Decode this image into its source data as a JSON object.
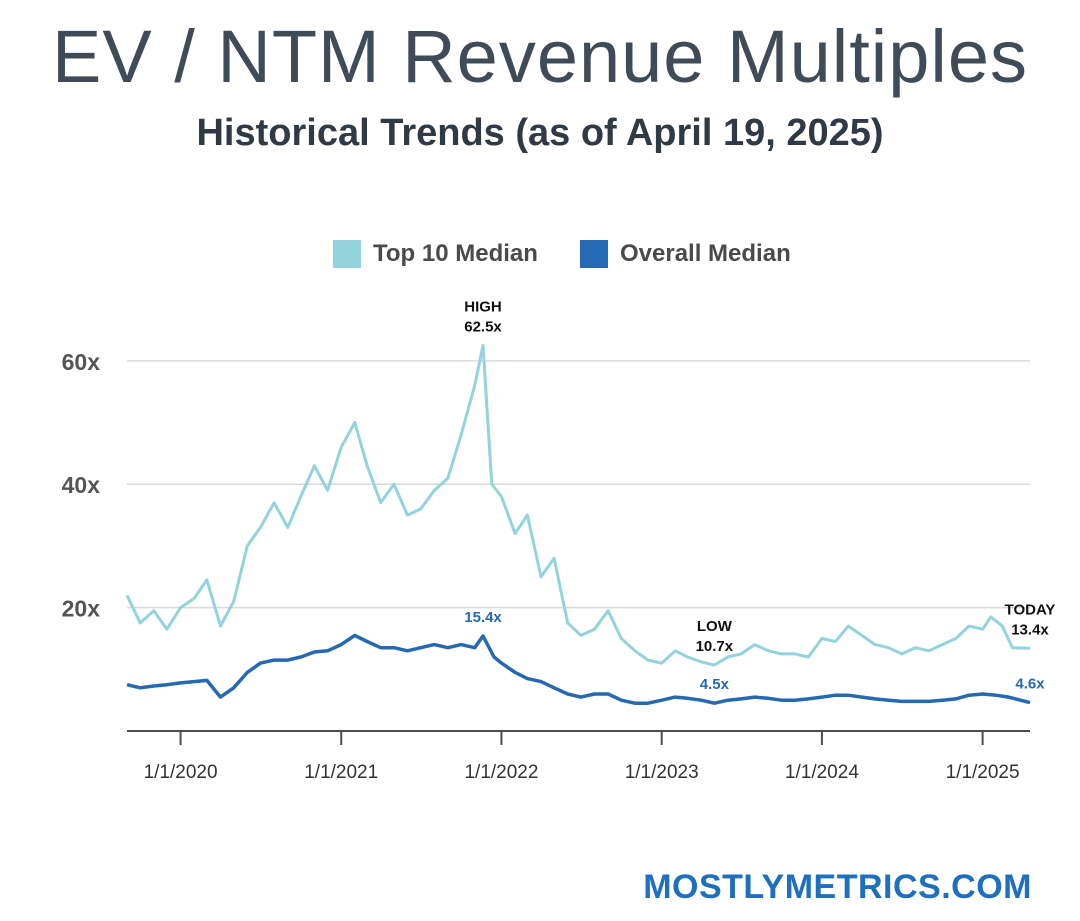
{
  "header": {
    "title": "EV / NTM Revenue Multiples",
    "subtitle": "Historical Trends (as of  April 19, 2025)"
  },
  "legend": [
    {
      "label": "Top 10 Median",
      "color": "#92d3de"
    },
    {
      "label": "Overall Median",
      "color": "#2569b3"
    }
  ],
  "colors": {
    "top10": "#92d3de",
    "overall": "#2569b3",
    "grid": "#d9d9d9",
    "axis": "#4d4d4d"
  },
  "brand": "MOSTLYMETRICS.COM",
  "chart_data": {
    "type": "line",
    "title": "EV / NTM Revenue Multiples",
    "subtitle": "Historical Trends (as of  April 19, 2025)",
    "xlabel": "",
    "ylabel": "",
    "xlim": [
      "2019-09-01",
      "2025-04-19"
    ],
    "ylim": [
      0,
      65
    ],
    "yticks": [
      20,
      40,
      60
    ],
    "ytick_labels": [
      "20x",
      "40x",
      "60x"
    ],
    "xticks": [
      "2020-01-01",
      "2021-01-01",
      "2022-01-01",
      "2023-01-01",
      "2024-01-01",
      "2025-01-01"
    ],
    "xtick_labels": [
      "1/1/2020",
      "1/1/2021",
      "1/1/2022",
      "1/1/2023",
      "1/1/2024",
      "1/1/2025"
    ],
    "grid": true,
    "legend_position": "top",
    "series": [
      {
        "name": "Top 10 Median",
        "color": "#92d3de",
        "points": [
          [
            "2019-09-01",
            22
          ],
          [
            "2019-10-01",
            17.5
          ],
          [
            "2019-11-01",
            19.5
          ],
          [
            "2019-12-01",
            16.5
          ],
          [
            "2020-01-01",
            20
          ],
          [
            "2020-02-01",
            21.5
          ],
          [
            "2020-03-01",
            24.5
          ],
          [
            "2020-04-01",
            17
          ],
          [
            "2020-05-01",
            21
          ],
          [
            "2020-06-01",
            30
          ],
          [
            "2020-07-01",
            33
          ],
          [
            "2020-08-01",
            37
          ],
          [
            "2020-09-01",
            33
          ],
          [
            "2020-10-01",
            38
          ],
          [
            "2020-11-01",
            43
          ],
          [
            "2020-12-01",
            39
          ],
          [
            "2021-01-01",
            46
          ],
          [
            "2021-02-01",
            50
          ],
          [
            "2021-03-01",
            43
          ],
          [
            "2021-04-01",
            37
          ],
          [
            "2021-05-01",
            40
          ],
          [
            "2021-06-01",
            35
          ],
          [
            "2021-07-01",
            36
          ],
          [
            "2021-08-01",
            39
          ],
          [
            "2021-09-01",
            41
          ],
          [
            "2021-10-01",
            48
          ],
          [
            "2021-11-01",
            56
          ],
          [
            "2021-11-20",
            62.5
          ],
          [
            "2021-12-10",
            40
          ],
          [
            "2022-01-01",
            38
          ],
          [
            "2022-02-01",
            32
          ],
          [
            "2022-03-01",
            35
          ],
          [
            "2022-04-01",
            25
          ],
          [
            "2022-05-01",
            28
          ],
          [
            "2022-06-01",
            17.5
          ],
          [
            "2022-07-01",
            15.5
          ],
          [
            "2022-08-01",
            16.5
          ],
          [
            "2022-09-01",
            19.5
          ],
          [
            "2022-10-01",
            15
          ],
          [
            "2022-11-01",
            13
          ],
          [
            "2022-12-01",
            11.5
          ],
          [
            "2023-01-01",
            11
          ],
          [
            "2023-02-01",
            13
          ],
          [
            "2023-03-01",
            12
          ],
          [
            "2023-04-01",
            11.2
          ],
          [
            "2023-05-01",
            10.7
          ],
          [
            "2023-06-01",
            12
          ],
          [
            "2023-07-01",
            12.5
          ],
          [
            "2023-08-01",
            14
          ],
          [
            "2023-09-01",
            13
          ],
          [
            "2023-10-01",
            12.5
          ],
          [
            "2023-11-01",
            12.5
          ],
          [
            "2023-12-01",
            12
          ],
          [
            "2024-01-01",
            15
          ],
          [
            "2024-02-01",
            14.5
          ],
          [
            "2024-03-01",
            17
          ],
          [
            "2024-04-01",
            15.5
          ],
          [
            "2024-05-01",
            14
          ],
          [
            "2024-06-01",
            13.5
          ],
          [
            "2024-07-01",
            12.5
          ],
          [
            "2024-08-01",
            13.5
          ],
          [
            "2024-09-01",
            13
          ],
          [
            "2024-10-01",
            14
          ],
          [
            "2024-11-01",
            15
          ],
          [
            "2024-12-01",
            17
          ],
          [
            "2025-01-01",
            16.5
          ],
          [
            "2025-01-20",
            18.5
          ],
          [
            "2025-02-15",
            17
          ],
          [
            "2025-03-10",
            13.5
          ],
          [
            "2025-04-19",
            13.4
          ]
        ]
      },
      {
        "name": "Overall Median",
        "color": "#2569b3",
        "points": [
          [
            "2019-09-01",
            7.5
          ],
          [
            "2019-10-01",
            7
          ],
          [
            "2019-11-01",
            7.3
          ],
          [
            "2019-12-01",
            7.5
          ],
          [
            "2020-01-01",
            7.8
          ],
          [
            "2020-02-01",
            8
          ],
          [
            "2020-03-01",
            8.2
          ],
          [
            "2020-04-01",
            5.5
          ],
          [
            "2020-05-01",
            7
          ],
          [
            "2020-06-01",
            9.5
          ],
          [
            "2020-07-01",
            11
          ],
          [
            "2020-08-01",
            11.5
          ],
          [
            "2020-09-01",
            11.5
          ],
          [
            "2020-10-01",
            12
          ],
          [
            "2020-11-01",
            12.8
          ],
          [
            "2020-12-01",
            13
          ],
          [
            "2021-01-01",
            14
          ],
          [
            "2021-02-01",
            15.5
          ],
          [
            "2021-03-01",
            14.5
          ],
          [
            "2021-04-01",
            13.5
          ],
          [
            "2021-05-01",
            13.5
          ],
          [
            "2021-06-01",
            13
          ],
          [
            "2021-07-01",
            13.5
          ],
          [
            "2021-08-01",
            14
          ],
          [
            "2021-09-01",
            13.5
          ],
          [
            "2021-10-01",
            14
          ],
          [
            "2021-11-01",
            13.5
          ],
          [
            "2021-11-20",
            15.4
          ],
          [
            "2021-12-15",
            12
          ],
          [
            "2022-01-01",
            11
          ],
          [
            "2022-02-01",
            9.5
          ],
          [
            "2022-03-01",
            8.5
          ],
          [
            "2022-04-01",
            8
          ],
          [
            "2022-05-01",
            7
          ],
          [
            "2022-06-01",
            6
          ],
          [
            "2022-07-01",
            5.5
          ],
          [
            "2022-08-01",
            6
          ],
          [
            "2022-09-01",
            6
          ],
          [
            "2022-10-01",
            5
          ],
          [
            "2022-11-01",
            4.5
          ],
          [
            "2022-12-01",
            4.5
          ],
          [
            "2023-01-01",
            5
          ],
          [
            "2023-02-01",
            5.5
          ],
          [
            "2023-03-01",
            5.3
          ],
          [
            "2023-04-01",
            5
          ],
          [
            "2023-05-01",
            4.5
          ],
          [
            "2023-06-01",
            5
          ],
          [
            "2023-07-01",
            5.2
          ],
          [
            "2023-08-01",
            5.5
          ],
          [
            "2023-09-01",
            5.3
          ],
          [
            "2023-10-01",
            5
          ],
          [
            "2023-11-01",
            5
          ],
          [
            "2023-12-01",
            5.2
          ],
          [
            "2024-01-01",
            5.5
          ],
          [
            "2024-02-01",
            5.8
          ],
          [
            "2024-03-01",
            5.8
          ],
          [
            "2024-04-01",
            5.5
          ],
          [
            "2024-05-01",
            5.2
          ],
          [
            "2024-06-01",
            5
          ],
          [
            "2024-07-01",
            4.8
          ],
          [
            "2024-08-01",
            4.8
          ],
          [
            "2024-09-01",
            4.8
          ],
          [
            "2024-10-01",
            5
          ],
          [
            "2024-11-01",
            5.2
          ],
          [
            "2024-12-01",
            5.8
          ],
          [
            "2025-01-01",
            6
          ],
          [
            "2025-02-01",
            5.8
          ],
          [
            "2025-03-01",
            5.5
          ],
          [
            "2025-04-19",
            4.6
          ]
        ]
      }
    ],
    "annotations": [
      {
        "lines": [
          "HIGH",
          "62.5x"
        ],
        "x": "2021-11-20",
        "y": 62.5,
        "series": "Top 10 Median",
        "color": "#111111"
      },
      {
        "lines": [
          "15.4x"
        ],
        "x": "2021-11-20",
        "y": 15.4,
        "series": "Overall Median",
        "color": "#2569b3"
      },
      {
        "lines": [
          "LOW",
          "10.7x"
        ],
        "x": "2023-05-01",
        "y": 10.7,
        "series": "Top 10 Median",
        "color": "#111111"
      },
      {
        "lines": [
          "4.5x"
        ],
        "x": "2023-05-01",
        "y": 4.5,
        "series": "Overall Median",
        "color": "#2569b3"
      },
      {
        "lines": [
          "TODAY",
          "13.4x"
        ],
        "x": "2025-04-19",
        "y": 13.4,
        "series": "Top 10 Median",
        "color": "#111111"
      },
      {
        "lines": [
          "4.6x"
        ],
        "x": "2025-04-19",
        "y": 4.6,
        "series": "Overall Median",
        "color": "#2569b3"
      }
    ]
  }
}
